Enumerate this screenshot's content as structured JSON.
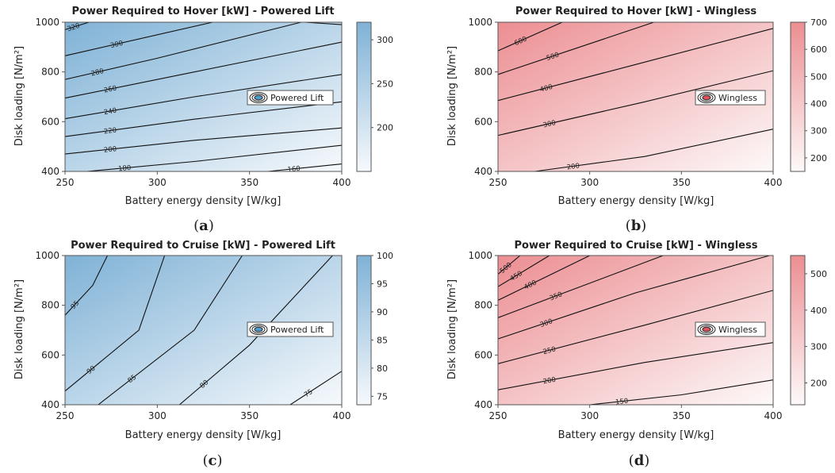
{
  "chart_data": [
    {
      "type": "heatmap",
      "panel_label": "a",
      "title": "Power Required to Hover [kW] - Powered Lift",
      "xlabel": "Battery energy density [W/kg]",
      "ylabel": "Disk loading [N/m²]",
      "xlim": [
        250,
        400
      ],
      "ylim": [
        400,
        1000
      ],
      "xticks": [
        250,
        300,
        350,
        400
      ],
      "yticks": [
        400,
        600,
        800,
        1000
      ],
      "colormap": "blues",
      "color_low": "#f6f9fc",
      "color_high": "#7fb2d6",
      "colorbar": {
        "min": 150,
        "max": 320,
        "ticks": [
          200,
          250,
          300
        ]
      },
      "legend": "Powered Lift",
      "legend_color": "#4e9dd0",
      "contour_labels": [
        "320",
        "300",
        "280",
        "260",
        "240",
        "220",
        "200",
        "180",
        "160"
      ],
      "contours": [
        {
          "level": 320,
          "points": [
            [
              250,
              970
            ],
            [
              263,
              1000
            ]
          ]
        },
        {
          "level": 300,
          "points": [
            [
              250,
              865
            ],
            [
              330,
              1000
            ]
          ]
        },
        {
          "level": 280,
          "points": [
            [
              250,
              770
            ],
            [
              300,
              855
            ],
            [
              378,
              1000
            ]
          ]
        },
        {
          "level": 280,
          "points": [
            [
              380,
              1000
            ],
            [
              400,
              990
            ]
          ]
        },
        {
          "level": 260,
          "points": [
            [
              250,
              695
            ],
            [
              320,
              800
            ],
            [
              400,
              920
            ]
          ]
        },
        {
          "level": 240,
          "points": [
            [
              250,
              612
            ],
            [
              320,
              700
            ],
            [
              400,
              790
            ]
          ]
        },
        {
          "level": 220,
          "points": [
            [
              250,
              540
            ],
            [
              320,
              610
            ],
            [
              400,
              680
            ]
          ]
        },
        {
          "level": 200,
          "points": [
            [
              250,
              470
            ],
            [
              320,
              525
            ],
            [
              400,
              575
            ]
          ]
        },
        {
          "level": 180,
          "points": [
            [
              262,
              400
            ],
            [
              320,
              440
            ],
            [
              400,
              505
            ]
          ]
        },
        {
          "level": 160,
          "points": [
            [
              360,
              400
            ],
            [
              400,
              430
            ]
          ]
        }
      ]
    },
    {
      "type": "heatmap",
      "panel_label": "b",
      "title": "Power Required to Hover [kW] - Wingless",
      "xlabel": "Battery energy density [W/kg]",
      "ylabel": "Disk loading [N/m²]",
      "xlim": [
        250,
        400
      ],
      "ylim": [
        400,
        1000
      ],
      "xticks": [
        250,
        300,
        350,
        400
      ],
      "yticks": [
        400,
        600,
        800,
        1000
      ],
      "colormap": "reds",
      "color_low": "#fdf9f9",
      "color_high": "#ec8e92",
      "colorbar": {
        "min": 150,
        "max": 700,
        "ticks": [
          200,
          300,
          400,
          500,
          600,
          700
        ]
      },
      "legend": "Wingless",
      "legend_color": "#e0525a",
      "contour_labels": [
        "600",
        "500",
        "400",
        "300",
        "200"
      ],
      "contours": [
        {
          "level": 600,
          "points": [
            [
              250,
              885
            ],
            [
              285,
              1000
            ]
          ]
        },
        {
          "level": 500,
          "points": [
            [
              250,
              790
            ],
            [
              335,
              1000
            ]
          ]
        },
        {
          "level": 400,
          "points": [
            [
              250,
              685
            ],
            [
              325,
              830
            ],
            [
              400,
              975
            ]
          ]
        },
        {
          "level": 300,
          "points": [
            [
              250,
              545
            ],
            [
              330,
              680
            ],
            [
              400,
              805
            ]
          ]
        },
        {
          "level": 200,
          "points": [
            [
              270,
              400
            ],
            [
              330,
              460
            ],
            [
              400,
              570
            ]
          ]
        }
      ]
    },
    {
      "type": "heatmap",
      "panel_label": "c",
      "title": "Power Required to Cruise [kW] - Powered Lift",
      "xlabel": "Battery energy density [W/kg]",
      "ylabel": "Disk loading [N/m²]",
      "xlim": [
        250,
        400
      ],
      "ylim": [
        400,
        1000
      ],
      "xticks": [
        250,
        300,
        350,
        400
      ],
      "yticks": [
        400,
        600,
        800,
        1000
      ],
      "colormap": "blues",
      "color_low": "#f6f9fc",
      "color_high": "#7fb2d6",
      "colorbar": {
        "min": 73.5,
        "max": 100,
        "ticks": [
          75,
          80,
          85,
          90,
          95,
          100
        ]
      },
      "legend": "Powered Lift",
      "legend_color": "#4e9dd0",
      "contour_labels": [
        "95",
        "90",
        "85",
        "80",
        "75"
      ],
      "contours": [
        {
          "level": 95,
          "points": [
            [
              250,
              760
            ],
            [
              265,
              880
            ],
            [
              273,
              1000
            ]
          ]
        },
        {
          "level": 90,
          "points": [
            [
              250,
              455
            ],
            [
              290,
              700
            ],
            [
              304,
              1000
            ]
          ]
        },
        {
          "level": 85,
          "points": [
            [
              268,
              400
            ],
            [
              320,
              700
            ],
            [
              346,
              1000
            ]
          ]
        },
        {
          "level": 80,
          "points": [
            [
              312,
              400
            ],
            [
              350,
              640
            ],
            [
              395,
              1000
            ]
          ]
        },
        {
          "level": 75,
          "points": [
            [
              372,
              400
            ],
            [
              400,
              535
            ]
          ]
        }
      ]
    },
    {
      "type": "heatmap",
      "panel_label": "d",
      "title": "Power Required to Cruise [kW] - Wingless",
      "xlabel": "Battery energy density [W/kg]",
      "ylabel": "Disk loading [N/m²]",
      "xlim": [
        250,
        400
      ],
      "ylim": [
        400,
        1000
      ],
      "xticks": [
        250,
        300,
        350,
        400
      ],
      "yticks": [
        400,
        600,
        800,
        1000
      ],
      "colormap": "reds",
      "color_low": "#fdf9f9",
      "color_high": "#ec8e92",
      "colorbar": {
        "min": 140,
        "max": 550,
        "ticks": [
          200,
          300,
          400,
          500
        ]
      },
      "legend": "Wingless",
      "legend_color": "#e0525a",
      "contour_labels": [
        "500",
        "450",
        "400",
        "350",
        "300",
        "250",
        "200",
        "150"
      ],
      "contours": [
        {
          "level": 500,
          "points": [
            [
              250,
              925
            ],
            [
              262,
              1000
            ]
          ]
        },
        {
          "level": 450,
          "points": [
            [
              250,
              875
            ],
            [
              278,
              1000
            ]
          ]
        },
        {
          "level": 400,
          "points": [
            [
              250,
              820
            ],
            [
              300,
              1000
            ]
          ]
        },
        {
          "level": 350,
          "points": [
            [
              250,
              750
            ],
            [
              340,
              1000
            ]
          ]
        },
        {
          "level": 300,
          "points": [
            [
              250,
              665
            ],
            [
              325,
              850
            ],
            [
              398,
              1000
            ]
          ]
        },
        {
          "level": 250,
          "points": [
            [
              250,
              565
            ],
            [
              330,
              720
            ],
            [
              400,
              860
            ]
          ]
        },
        {
          "level": 200,
          "points": [
            [
              250,
              460
            ],
            [
              330,
              570
            ],
            [
              400,
              650
            ]
          ]
        },
        {
          "level": 150,
          "points": [
            [
              300,
              400
            ],
            [
              350,
              440
            ],
            [
              400,
              500
            ]
          ]
        }
      ]
    }
  ]
}
